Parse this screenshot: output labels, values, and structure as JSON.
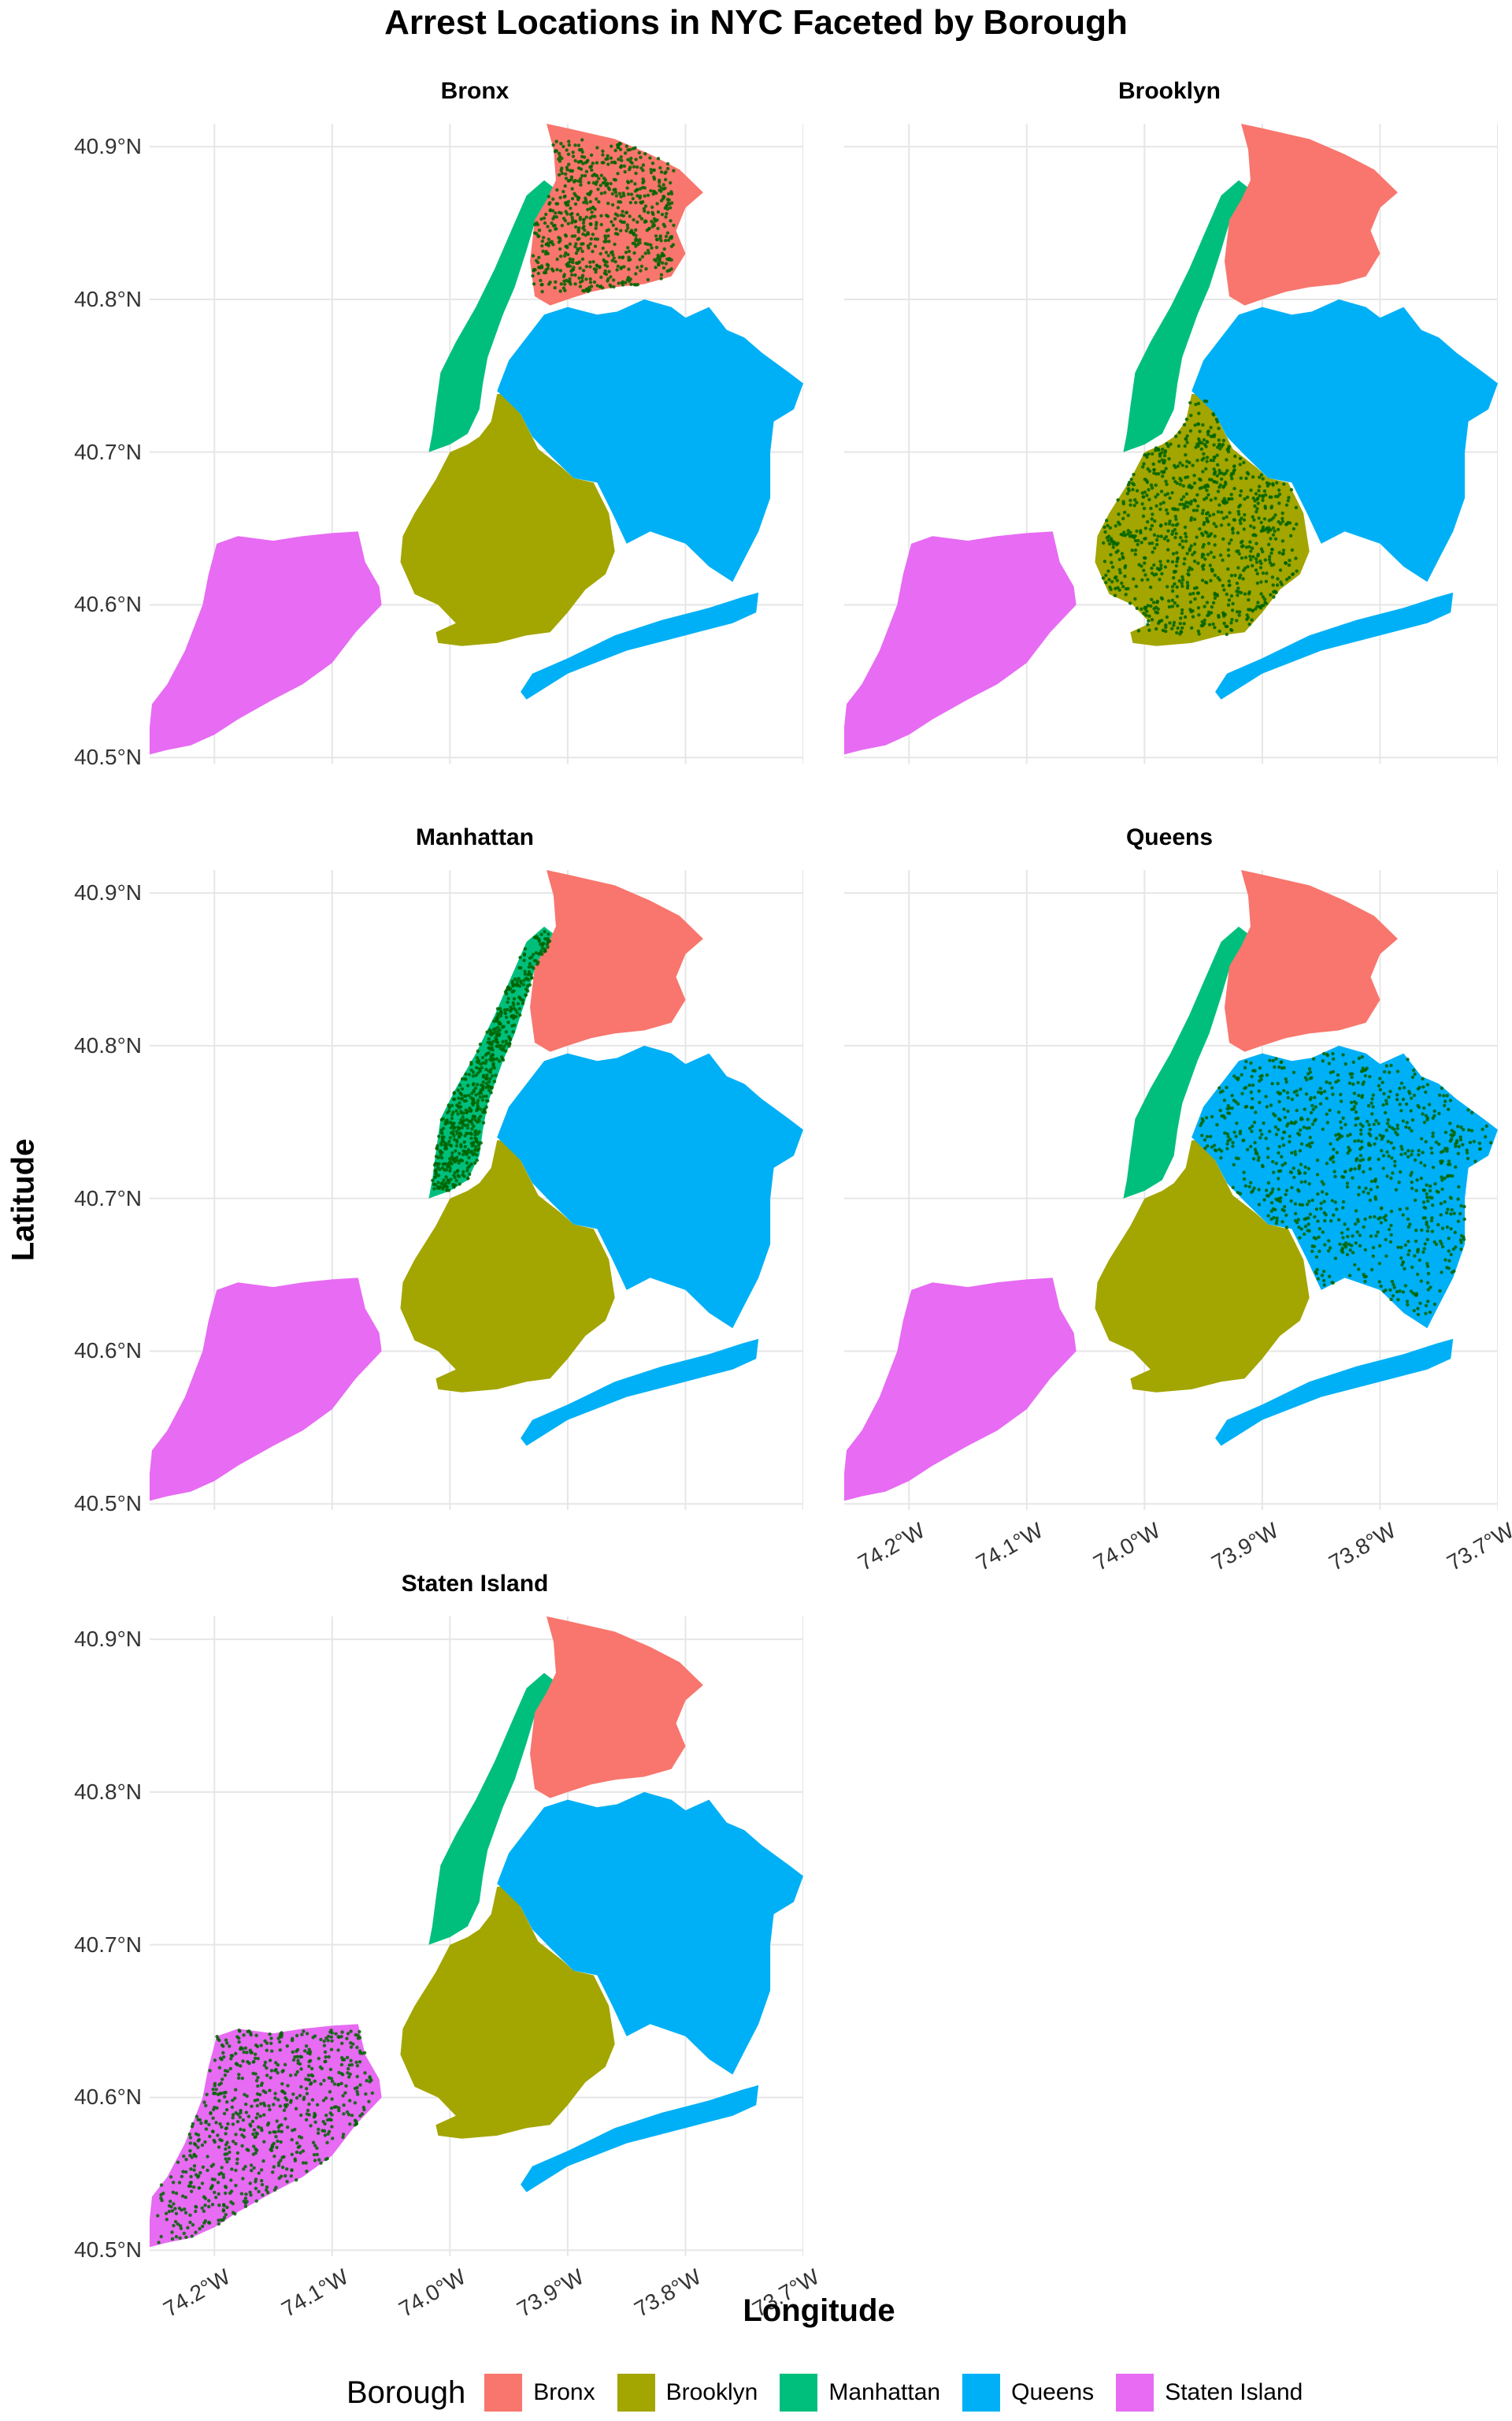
{
  "title": "Arrest Locations in NYC Faceted by Borough",
  "xlabel": "Longitude",
  "ylabel": "Latitude",
  "legend_title": "Borough",
  "borough_colors": {
    "Bronx": "#F8766D",
    "Brooklyn": "#A3A500",
    "Manhattan": "#00BF7D",
    "Queens": "#00B0F6",
    "Staten Island": "#E76BF3"
  },
  "point_color": "#006400",
  "legend": [
    {
      "label": "Bronx",
      "color": "#F8766D"
    },
    {
      "label": "Brooklyn",
      "color": "#A3A500"
    },
    {
      "label": "Manhattan",
      "color": "#00BF7D"
    },
    {
      "label": "Queens",
      "color": "#00B0F6"
    },
    {
      "label": "Staten Island",
      "color": "#E76BF3"
    }
  ],
  "panels": [
    {
      "name": "Bronx"
    },
    {
      "name": "Brooklyn"
    },
    {
      "name": "Manhattan"
    },
    {
      "name": "Queens"
    },
    {
      "name": "Staten Island"
    }
  ],
  "y_ticks": [
    "40.9°N",
    "40.8°N",
    "40.7°N",
    "40.6°N",
    "40.5°N"
  ],
  "x_ticks": [
    "74.2°W",
    "74.1°W",
    "74.0°W",
    "73.9°W",
    "73.8°W",
    "73.7°W"
  ],
  "chart_data": {
    "type": "scatter",
    "title": "Arrest Locations in NYC Faceted by Borough",
    "xlabel": "Longitude",
    "ylabel": "Latitude",
    "xlim": [
      -74.255,
      -73.7
    ],
    "ylim": [
      40.496,
      40.915
    ],
    "facets": [
      "Bronx",
      "Brooklyn",
      "Manhattan",
      "Queens",
      "Staten Island"
    ],
    "legend_position": "bottom",
    "grid": true,
    "series": [
      {
        "name": "Bronx",
        "lon_range": [
          -73.93,
          -73.77
        ],
        "lat_range": [
          40.8,
          40.9
        ]
      },
      {
        "name": "Brooklyn",
        "lon_range": [
          -74.04,
          -73.86
        ],
        "lat_range": [
          40.57,
          40.74
        ]
      },
      {
        "name": "Manhattan",
        "lon_range": [
          -74.02,
          -73.91
        ],
        "lat_range": [
          40.7,
          40.88
        ]
      },
      {
        "name": "Queens",
        "lon_range": [
          -73.96,
          -73.7
        ],
        "lat_range": [
          40.54,
          40.8
        ]
      },
      {
        "name": "Staten Island",
        "lon_range": [
          -74.25,
          -74.06
        ],
        "lat_range": [
          40.5,
          40.65
        ]
      }
    ]
  }
}
